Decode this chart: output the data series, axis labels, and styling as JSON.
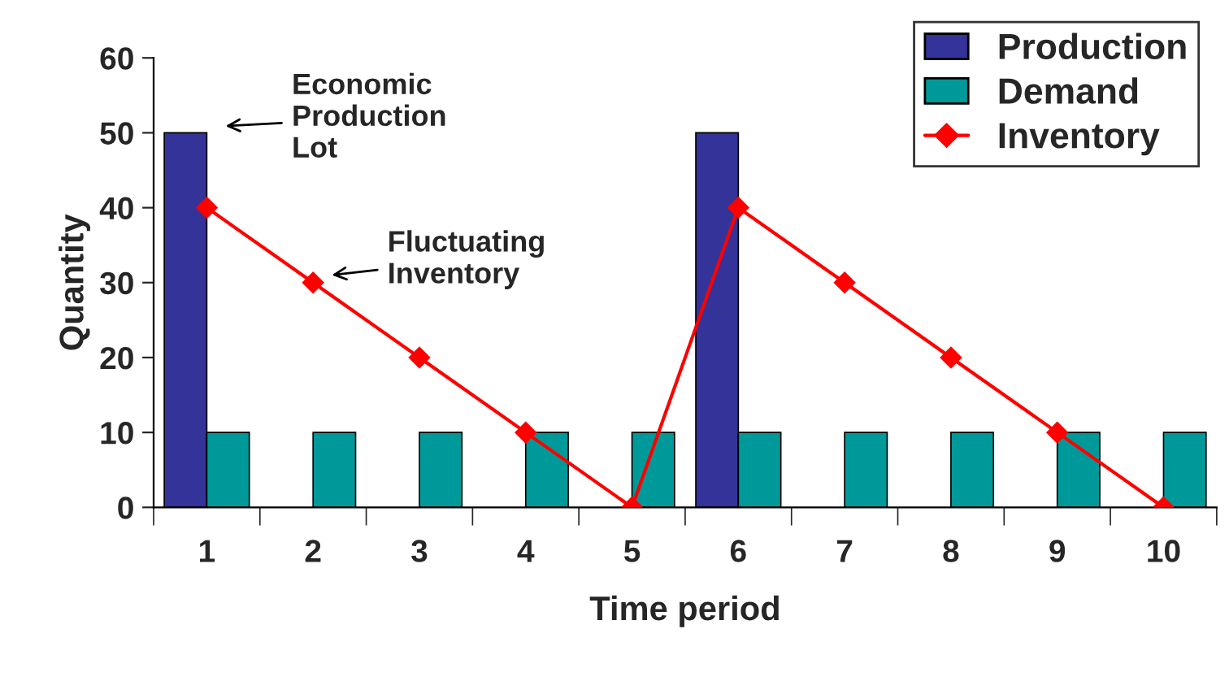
{
  "chart_data": {
    "type": "bar",
    "xlabel": "Time period",
    "ylabel": "Quantity",
    "categories": [
      "1",
      "2",
      "3",
      "4",
      "5",
      "6",
      "7",
      "8",
      "9",
      "10"
    ],
    "series": [
      {
        "name": "Production",
        "color": "#333399",
        "values": [
          50,
          null,
          null,
          null,
          null,
          50,
          null,
          null,
          null,
          null
        ]
      },
      {
        "name": "Demand",
        "color": "#009999",
        "values": [
          10,
          10,
          10,
          10,
          10,
          10,
          10,
          10,
          10,
          10
        ]
      },
      {
        "name": "Inventory",
        "type": "line",
        "color": "#ff0000",
        "marker": "diamond",
        "values": [
          40,
          30,
          20,
          10,
          0,
          40,
          30,
          20,
          10,
          0
        ]
      }
    ],
    "ylim": [
      0,
      60
    ],
    "yticks": [
      0,
      10,
      20,
      30,
      40,
      50,
      60
    ],
    "grid": false,
    "legend": "top right",
    "annotations": [
      {
        "text": "Economic\nProduction\nLot",
        "x": "1",
        "y": 50
      },
      {
        "text": "Fluctuating\nInventory",
        "x": "2",
        "y": 30
      }
    ]
  }
}
